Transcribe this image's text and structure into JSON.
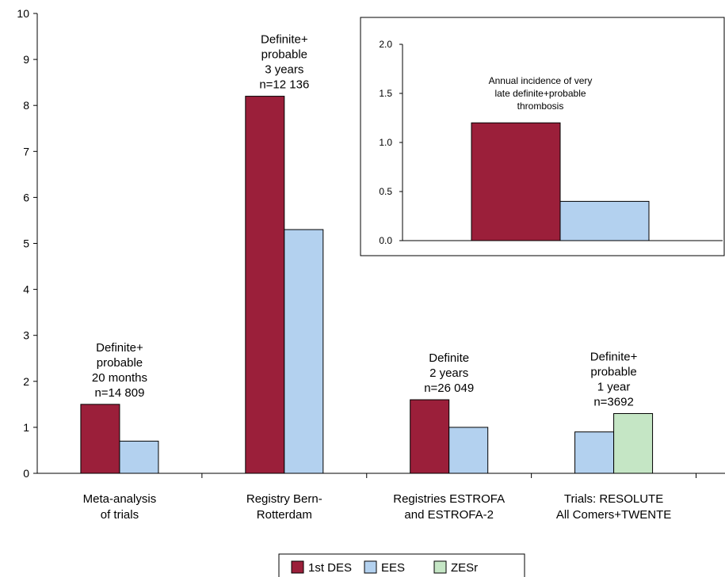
{
  "chart_data": [
    {
      "type": "bar",
      "title": "",
      "xlabel": "",
      "ylabel": "",
      "ylim": [
        0,
        10
      ],
      "yticks": [
        "0",
        "1",
        "2",
        "3",
        "4",
        "5",
        "6",
        "7",
        "8",
        "9",
        "10"
      ],
      "categories": [
        [
          "Meta-analysis",
          "of trials"
        ],
        [
          "Registry Bern-",
          "Rotterdam"
        ],
        [
          "Registries ESTROFA",
          "and ESTROFA-2"
        ],
        [
          "Trials: RESOLUTE",
          "All Comers+TWENTE"
        ]
      ],
      "series": [
        {
          "name": "1st DES",
          "color": "#9b1f3a",
          "values": [
            1.5,
            8.2,
            1.6,
            null
          ]
        },
        {
          "name": "EES",
          "color": "#b3d1ef",
          "values": [
            0.7,
            5.3,
            1.0,
            0.9
          ]
        },
        {
          "name": "ZESr",
          "color": "#c5e6c5",
          "values": [
            null,
            null,
            null,
            1.3
          ]
        }
      ],
      "annotations": [
        [
          "Definite+",
          "probable",
          "20 months",
          "n=14 809"
        ],
        [
          "Definite+",
          "probable",
          "3 years",
          "n=12 136"
        ],
        [
          "Definite",
          "2 years",
          "n=26 049"
        ],
        [
          "Definite+",
          "probable",
          "1 year",
          "n=3692"
        ]
      ],
      "legend": {
        "placement": "bottom",
        "entries": [
          "1st DES",
          "EES",
          "ZESr"
        ]
      },
      "grid": false
    },
    {
      "type": "bar",
      "inset": true,
      "title": "",
      "ylim": [
        0,
        2.0
      ],
      "yticks": [
        "0.0",
        "0.5",
        "1.0",
        "1.5",
        "2.0"
      ],
      "series": [
        {
          "name": "1st DES",
          "color": "#9b1f3a",
          "values": [
            1.2
          ]
        },
        {
          "name": "EES",
          "color": "#b3d1ef",
          "values": [
            0.4
          ]
        }
      ],
      "annotation": [
        "Annual incidence of very",
        "late definite+probable",
        "thrombosis"
      ],
      "grid": false
    }
  ]
}
